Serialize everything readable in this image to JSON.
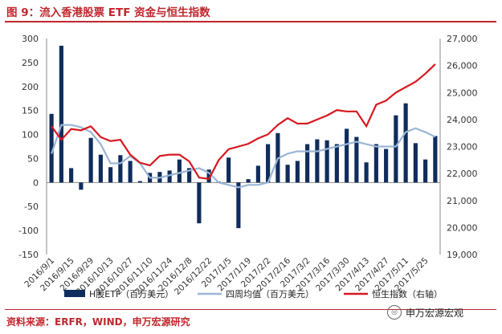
{
  "title": "图 9：流入香港股票 ETF 资金与恒生指数",
  "source": "资料来源：ERFR，WIND，申万宏源研究",
  "watermark": "申万宏源宏观",
  "colors": {
    "bar": "#0f2c5c",
    "avg": "#9ab6d6",
    "hsi": "#d7171f",
    "brand": "#c0272d"
  },
  "chart_data": {
    "type": "bar",
    "x_tick_labels": [
      "2016/9/1",
      "2016/9/15",
      "2016/9/29",
      "2016/10/13",
      "2016/10/27",
      "2016/11/10",
      "2016/11/24",
      "2016/12/8",
      "2016/12/22",
      "2017/1/5",
      "2017/1/19",
      "2017/2/2",
      "2017/2/16",
      "2017/3/2",
      "2017/3/16",
      "2017/3/30",
      "2017/4/13",
      "2017/4/27",
      "2017/5/11",
      "2017/5/25"
    ],
    "left_axis": {
      "ylim": [
        -150,
        300
      ],
      "ticks": [
        300,
        250,
        200,
        150,
        100,
        50,
        0,
        -50,
        -100,
        -150
      ]
    },
    "right_axis": {
      "ylim": [
        19000,
        27000
      ],
      "ticks": [
        "27,000",
        "26,000",
        "25,000",
        "24,000",
        "23,000",
        "22,000",
        "21,000",
        "20,000",
        "19,000"
      ]
    },
    "series": [
      {
        "name": "H股ETF（百万美元）",
        "type": "bar",
        "axis": "left",
        "values": [
          143,
          285,
          30,
          -15,
          93,
          58,
          32,
          57,
          45,
          3,
          20,
          22,
          25,
          48,
          30,
          -85,
          27,
          2,
          52,
          -95,
          7,
          35,
          80,
          103,
          37,
          45,
          80,
          90,
          88,
          80,
          112,
          95,
          42,
          80,
          70,
          140,
          165,
          82,
          48,
          97
        ]
      },
      {
        "name": "四周均值（百万美元）",
        "type": "line",
        "axis": "left",
        "values": [
          60,
          120,
          120,
          115,
          105,
          80,
          40,
          40,
          55,
          40,
          10,
          10,
          15,
          20,
          25,
          30,
          20,
          0,
          -5,
          -10,
          -5,
          -5,
          0,
          50,
          60,
          65,
          65,
          65,
          70,
          75,
          80,
          85,
          80,
          75,
          75,
          75,
          105,
          113,
          105,
          95
        ]
      },
      {
        "name": "恒生指数（右轴）",
        "type": "line",
        "axis": "right",
        "values": [
          23750,
          23250,
          23650,
          23600,
          23750,
          23350,
          23200,
          23250,
          22700,
          22400,
          22300,
          22650,
          22700,
          22700,
          22450,
          21850,
          21800,
          22500,
          22900,
          23000,
          23100,
          23300,
          23450,
          23800,
          24050,
          23850,
          23850,
          24000,
          24150,
          24350,
          24300,
          24300,
          23750,
          24550,
          24700,
          25000,
          25200,
          25400,
          25700,
          26050
        ]
      }
    ]
  }
}
